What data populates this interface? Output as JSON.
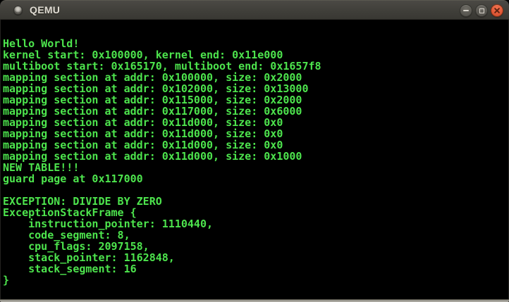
{
  "window": {
    "title": "QEMU",
    "icons": {
      "window_icon": "circle-badge",
      "minimize_icon": "minus-dash",
      "maximize_icon": "square-outline",
      "close_icon": "x-cross"
    },
    "colors": {
      "titlebar": "#403f3a",
      "title_text": "#dfdbd2",
      "close_button": "#e25a38",
      "control_button_gray": "#5a5852",
      "bottom_edge": "#aba9a1"
    }
  },
  "terminal": {
    "colors": {
      "background": "#000000",
      "foreground": "#4de44d"
    },
    "lines": [
      "Hello World!",
      "kernel start: 0x100000, kernel end: 0x11e000",
      "multiboot start: 0x165170, multiboot end: 0x1657f8",
      "mapping section at addr: 0x100000, size: 0x2000",
      "mapping section at addr: 0x102000, size: 0x13000",
      "mapping section at addr: 0x115000, size: 0x2000",
      "mapping section at addr: 0x117000, size: 0x6000",
      "mapping section at addr: 0x11d000, size: 0x0",
      "mapping section at addr: 0x11d000, size: 0x0",
      "mapping section at addr: 0x11d000, size: 0x0",
      "mapping section at addr: 0x11d000, size: 0x1000",
      "NEW TABLE!!!",
      "guard page at 0x117000",
      "",
      "EXCEPTION: DIVIDE BY ZERO",
      "ExceptionStackFrame {",
      "    instruction_pointer: 1110440,",
      "    code_segment: 8,",
      "    cpu_flags: 2097158,",
      "    stack_pointer: 1162848,",
      "    stack_segment: 16",
      "}"
    ]
  }
}
